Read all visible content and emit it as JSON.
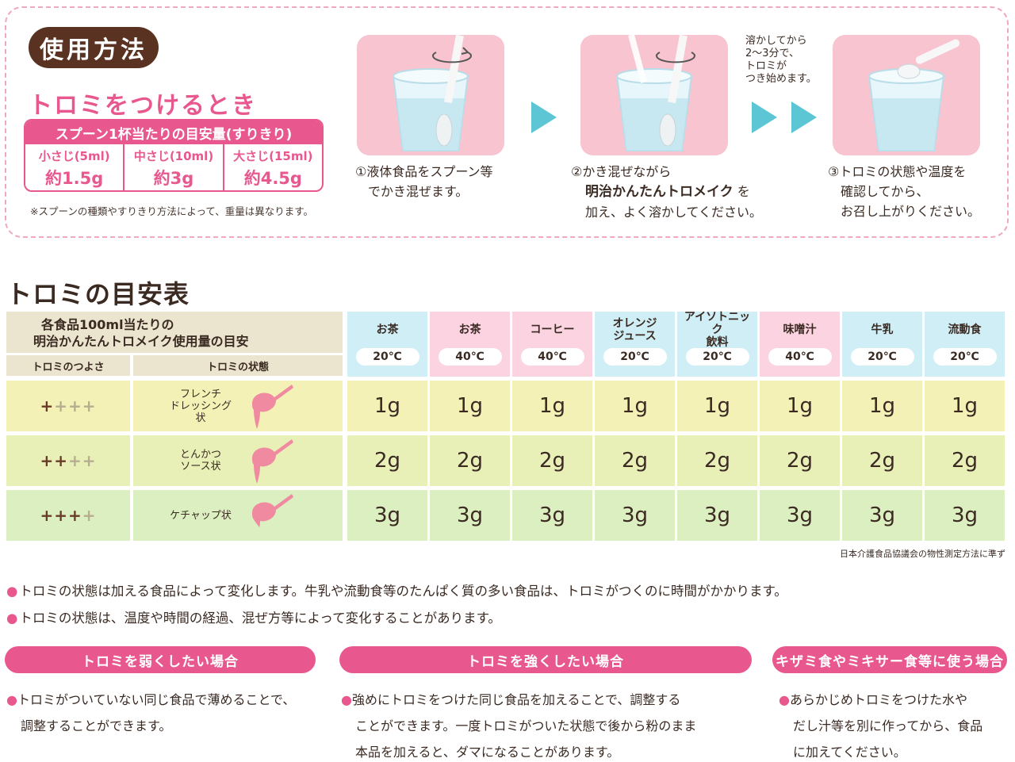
{
  "usage": {
    "badge": "使用方法",
    "add_title": "トロミをつけるとき",
    "spoon_table": {
      "header": "スプーン1杯当たりの目安量(すりきり)",
      "cells": [
        {
          "name": "小さじ(5ml)",
          "value": "約1.5g"
        },
        {
          "name": "中さじ(10ml)",
          "value": "約3g"
        },
        {
          "name": "大さじ(15ml)",
          "value": "約4.5g"
        }
      ]
    },
    "note": "※スプーンの種類やすりきり方法によって、重量は異なります。",
    "pre_note": [
      "溶かしてから",
      "2〜3分で、",
      "トロミが",
      "つき始めます。"
    ],
    "steps": [
      {
        "lines": [
          "①液体食品をスプーン等",
          "　でかき混ぜます。"
        ]
      },
      {
        "line1": "②かき混ぜながら",
        "brand": "明治かんたんトロメイク",
        "brand_suffix": "を",
        "line3": "加え、よく溶かしてください。"
      },
      {
        "lines": [
          "③トロミの状態や温度を",
          "　確認してから、",
          "　お召し上がりください。"
        ]
      }
    ]
  },
  "table": {
    "title": "トロミの目安表",
    "desc_line1": "各食品100ml当たりの",
    "desc_line2": "明治かんたんトロメイク使用量の目安",
    "head_strength": "トロミのつよさ",
    "head_state": "トロミの状態",
    "columns": [
      {
        "name": "お茶",
        "temp": "20℃",
        "color": "blue"
      },
      {
        "name": "お茶",
        "temp": "40℃",
        "color": "pink"
      },
      {
        "name": "コーヒー",
        "temp": "40℃",
        "color": "pink"
      },
      {
        "name": "オレンジ\nジュース",
        "temp": "20℃",
        "color": "blue"
      },
      {
        "name": "アイソトニック\n飲料",
        "temp": "20℃",
        "color": "blue"
      },
      {
        "name": "味噌汁",
        "temp": "40℃",
        "color": "pink"
      },
      {
        "name": "牛乳",
        "temp": "20℃",
        "color": "blue"
      },
      {
        "name": "流動食",
        "temp": "20℃",
        "color": "blue"
      }
    ],
    "rows": [
      {
        "strength_on": "+",
        "strength_off": "+++",
        "state": "フレンチ\nドレッシング状",
        "value": "1g"
      },
      {
        "strength_on": "++",
        "strength_off": "++",
        "state": "とんかつ\nソース状",
        "value": "2g"
      },
      {
        "strength_on": "+++",
        "strength_off": "+",
        "state": "ケチャップ状",
        "value": "3g"
      }
    ],
    "source": "日本介護食品協議会の物性測定方法に準ず"
  },
  "bullets": [
    "トロミの状態は加える食品によって変化します。牛乳や流動食等のたんぱく質の多い食品は、トロミがつくのに時間がかかります。",
    "トロミの状態は、温度や時間の経過、混ぜ方等によって変化することがあります。"
  ],
  "tips": [
    {
      "title": "トロミを弱くしたい場合",
      "lines": [
        "トロミがついていない同じ食品で薄めることで、",
        "調整することができます。"
      ]
    },
    {
      "title": "トロミを強くしたい場合",
      "lines": [
        "強めにトロミをつけた同じ食品を加えることで、調整する",
        "ことができます。一度トロミがついた状態で後から粉のまま",
        "本品を加えると、ダマになることがあります。"
      ]
    },
    {
      "title": "キザミ食やミキサー食等に使う場合",
      "lines": [
        "あらかじめトロミをつけた水や",
        "だし汁等を別に作ってから、食品",
        "に加えてください。"
      ]
    }
  ],
  "colors": {
    "accent_pink": "#e8588f",
    "brown": "#5a3222",
    "arrow": "#5cc6d4"
  },
  "icons": [
    "glass-spoon-icon",
    "arrow-right-icon",
    "thick-liquid-spoon-icon"
  ]
}
